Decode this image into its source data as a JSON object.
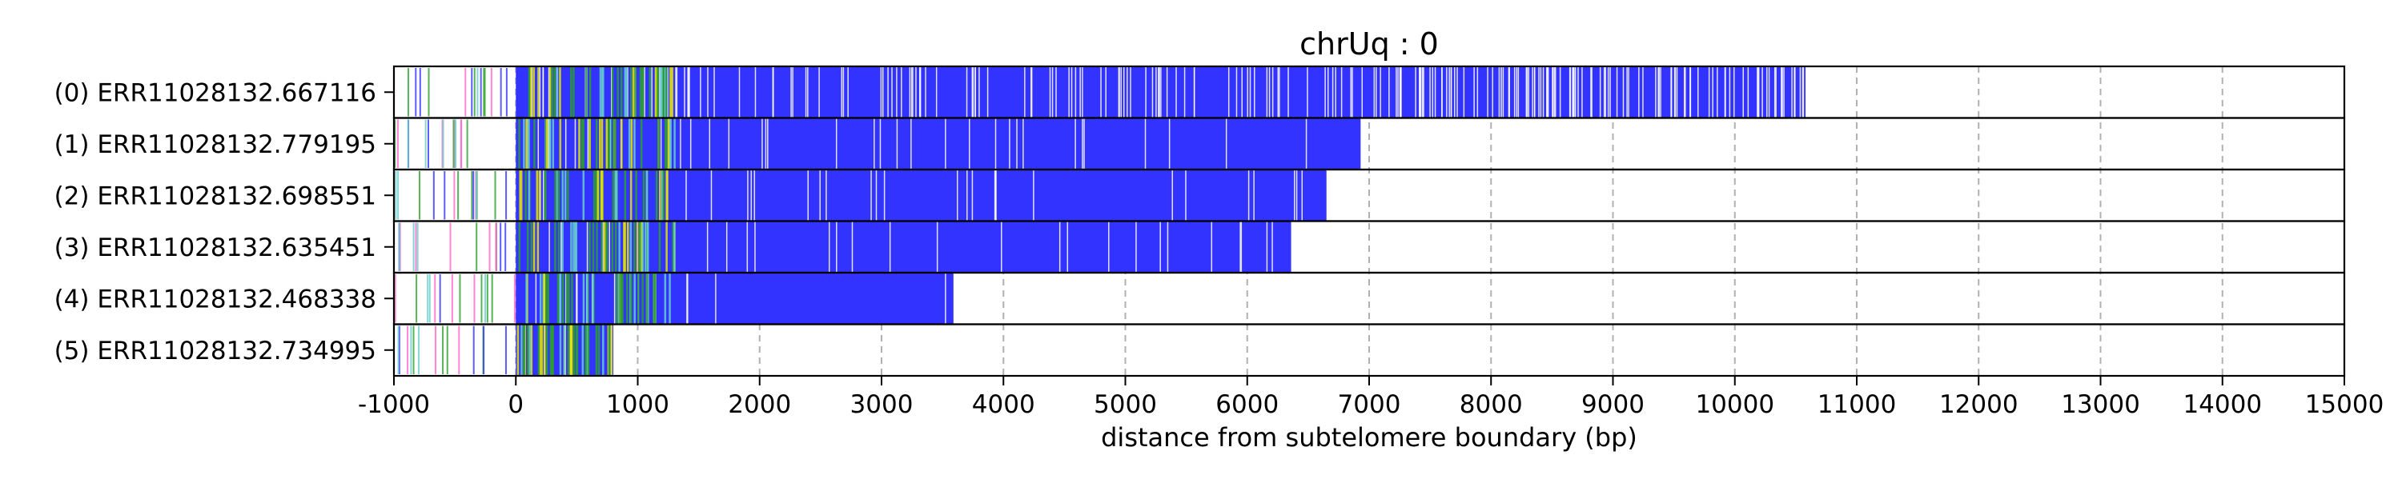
{
  "chart_data": {
    "type": "bar",
    "title": "chrUq : 0",
    "xlabel": "distance from subtelomere boundary (bp)",
    "ylabel": "",
    "xlim": [
      -1000,
      15000
    ],
    "xticks": [
      -1000,
      0,
      1000,
      2000,
      3000,
      4000,
      5000,
      6000,
      7000,
      8000,
      9000,
      10000,
      11000,
      12000,
      13000,
      14000,
      15000
    ],
    "grid": "vertical dashed",
    "reads": [
      {
        "label": "(0) ERR11028132.667116",
        "start": -1000,
        "end": 10580
      },
      {
        "label": "(1) ERR11028132.779195",
        "start": -1000,
        "end": 6930
      },
      {
        "label": "(2) ERR11028132.698551",
        "start": -1000,
        "end": 6650
      },
      {
        "label": "(3) ERR11028132.635451",
        "start": -1000,
        "end": 6360
      },
      {
        "label": "(4) ERR11028132.468338",
        "start": -1000,
        "end": 3590
      },
      {
        "label": "(5) ERR11028132.734995",
        "start": -1000,
        "end": 800
      }
    ],
    "colors": {
      "repeat_block": "#3333ff",
      "gap": "#ffffff",
      "variant_green": "#2ca02c",
      "variant_yellow": "#e6e600",
      "variant_pink": "#ff66cc",
      "variant_cyan": "#66cccc",
      "grid": "#b0b0b0"
    }
  }
}
